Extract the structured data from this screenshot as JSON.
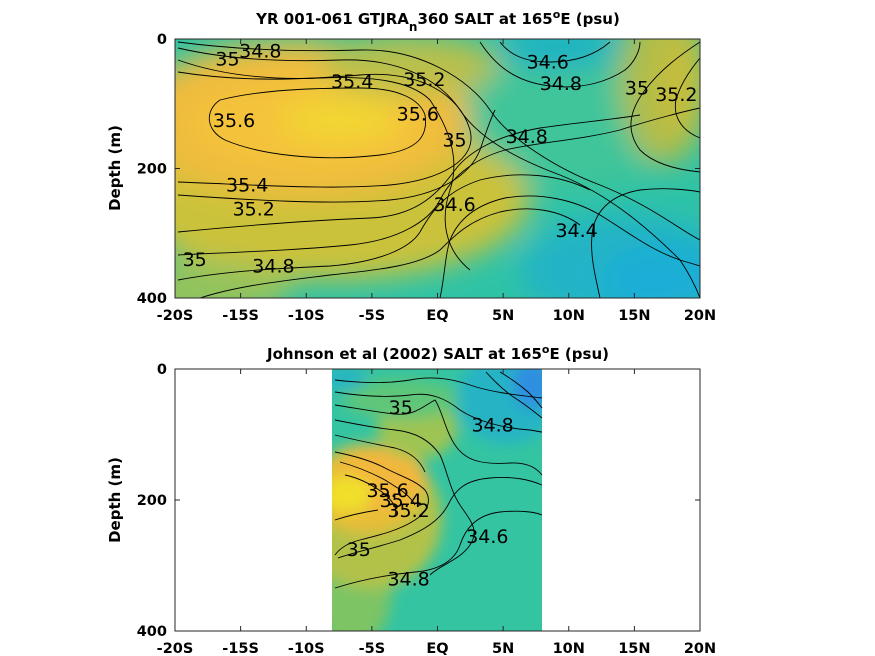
{
  "chart_data": [
    {
      "type": "heatmap",
      "subtype": "filled-contour",
      "title_parts": [
        "YR 001-061 GTJRA",
        "n",
        "360 SALT at 165",
        "o",
        "E (psu)"
      ],
      "ylabel": "Depth (m)",
      "xlim": [
        -20,
        20
      ],
      "ylim": [
        0,
        400
      ],
      "y_reversed": true,
      "xticks": [
        -20,
        -15,
        -10,
        -5,
        0,
        5,
        10,
        15,
        20
      ],
      "xtick_labels": [
        "-20S",
        "-15S",
        "-10S",
        "-5S",
        "EQ",
        "5N",
        "10N",
        "15N",
        "20N"
      ],
      "yticks": [
        0,
        200,
        400
      ],
      "ytick_labels": [
        "0",
        "200",
        "400"
      ],
      "data_extent_x": [
        -20,
        20
      ],
      "contour_labels": [
        {
          "text": "35",
          "x": -16,
          "y": 30
        },
        {
          "text": "34.8",
          "x": -13.5,
          "y": 18
        },
        {
          "text": "35.4",
          "x": -6.5,
          "y": 65
        },
        {
          "text": "35.2",
          "x": -1.0,
          "y": 62
        },
        {
          "text": "35.6",
          "x": -1.5,
          "y": 115
        },
        {
          "text": "35.6",
          "x": -15.5,
          "y": 125
        },
        {
          "text": "35",
          "x": 1.3,
          "y": 155
        },
        {
          "text": "34.8",
          "x": 6.8,
          "y": 150
        },
        {
          "text": "34.6",
          "x": 8.4,
          "y": 35
        },
        {
          "text": "34.8",
          "x": 9.4,
          "y": 68
        },
        {
          "text": "35",
          "x": 15.2,
          "y": 75
        },
        {
          "text": "35.2",
          "x": 18.2,
          "y": 85
        },
        {
          "text": "35.4",
          "x": -14.5,
          "y": 225
        },
        {
          "text": "35.2",
          "x": -14.0,
          "y": 262
        },
        {
          "text": "34.6",
          "x": 1.3,
          "y": 255
        },
        {
          "text": "34.4",
          "x": 10.6,
          "y": 295
        },
        {
          "text": "35",
          "x": -18.5,
          "y": 340
        },
        {
          "text": "34.8",
          "x": -12.5,
          "y": 350
        }
      ]
    },
    {
      "type": "heatmap",
      "subtype": "filled-contour",
      "title_parts": [
        "Johnson et al (2002) SALT at 165",
        "o",
        "E (psu)"
      ],
      "ylabel": "Depth (m)",
      "xlim": [
        -20,
        20
      ],
      "ylim": [
        0,
        400
      ],
      "y_reversed": true,
      "xticks": [
        -20,
        -15,
        -10,
        -5,
        0,
        5,
        10,
        15,
        20
      ],
      "xtick_labels": [
        "-20S",
        "-15S",
        "-10S",
        "-5S",
        "EQ",
        "5N",
        "10N",
        "15N",
        "20N"
      ],
      "yticks": [
        0,
        200,
        400
      ],
      "ytick_labels": [
        "0",
        "200",
        "400"
      ],
      "data_extent_x": [
        -8,
        8
      ],
      "contour_labels": [
        {
          "text": "35",
          "x": -2.8,
          "y": 58
        },
        {
          "text": "34.8",
          "x": 4.2,
          "y": 85
        },
        {
          "text": "35.6",
          "x": -3.8,
          "y": 185
        },
        {
          "text": "35.4",
          "x": -2.8,
          "y": 200
        },
        {
          "text": "35.2",
          "x": -2.2,
          "y": 215
        },
        {
          "text": "34.6",
          "x": 3.8,
          "y": 255
        },
        {
          "text": "35",
          "x": -6.0,
          "y": 275
        },
        {
          "text": "34.8",
          "x": -2.2,
          "y": 320
        }
      ]
    }
  ]
}
